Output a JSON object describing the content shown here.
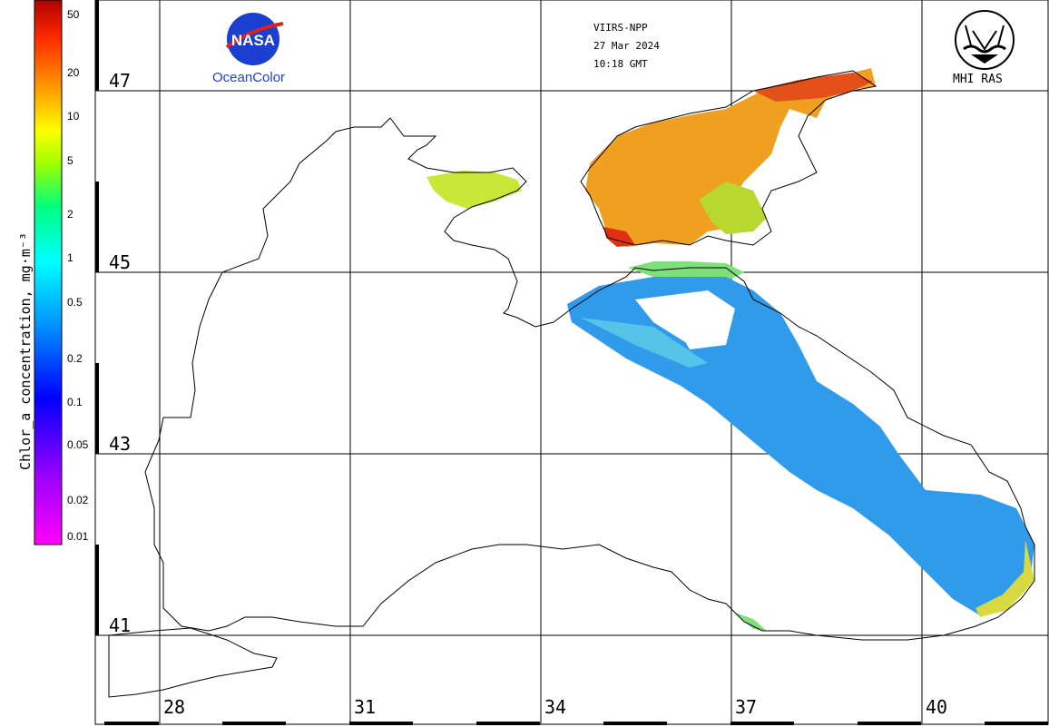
{
  "header": {
    "sensor": "VIIRS-NPP",
    "date": "27 Mar 2024",
    "time": "10:18 GMT"
  },
  "logos": {
    "nasa_wordmark": "NASA",
    "nasa_caption": "OceanColor",
    "mhi_caption": "MHI RAS"
  },
  "colorbar": {
    "title": "Chlor_a concentration, mg·m⁻³",
    "ticks": [
      "50",
      "20",
      "10",
      "5",
      "2",
      "1",
      "0.5",
      "0.2",
      "0.1",
      "0.05",
      "0.02",
      "0.01"
    ],
    "scale": "log",
    "colors": [
      "#ff00ff",
      "#7f00ff",
      "#0000ff",
      "#00a0ff",
      "#00ffff",
      "#00ff7f",
      "#7fff00",
      "#ffff00",
      "#ffaa00",
      "#ff5500",
      "#ff0000",
      "#b00000"
    ]
  },
  "grid": {
    "latitudes": [
      "47",
      "45",
      "43",
      "41"
    ],
    "longitudes": [
      "28",
      "31",
      "34",
      "37",
      "40"
    ]
  },
  "colors": {
    "coastline": "#000000",
    "grid": "#000000",
    "high_chl": "#e26a1c",
    "mid_chl": "#c4e62a",
    "low_chl": "#2f8ff0"
  }
}
